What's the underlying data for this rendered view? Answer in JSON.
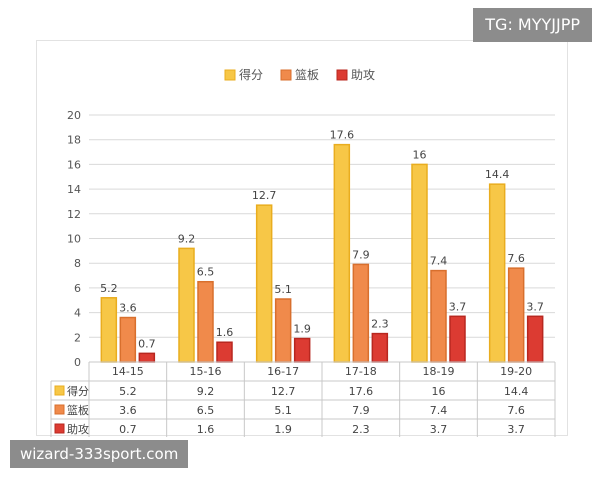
{
  "watermarks": {
    "top": "TG: MYYJJPP",
    "bottom": "wizard-333sport.com"
  },
  "colors": {
    "得分": "#f7c747",
    "篮板": "#f08a4b",
    "助攻": "#dc3b32"
  },
  "chart_data": {
    "type": "bar",
    "categories": [
      "14-15",
      "15-16",
      "16-17",
      "17-18",
      "18-19",
      "19-20"
    ],
    "series": [
      {
        "name": "得分",
        "values": [
          5.2,
          9.2,
          12.7,
          17.6,
          16,
          14.4
        ],
        "labels": [
          "5.2",
          "9.2",
          "12.7",
          "17.6",
          "16",
          "14.4"
        ]
      },
      {
        "name": "篮板",
        "values": [
          3.6,
          6.5,
          5.1,
          7.9,
          7.4,
          7.6
        ],
        "labels": [
          "3.6",
          "6.5",
          "5.1",
          "7.9",
          "7.4",
          "7.6"
        ]
      },
      {
        "name": "助攻",
        "values": [
          0.7,
          1.6,
          1.9,
          2.3,
          3.7,
          3.7
        ],
        "labels": [
          "0.7",
          "1.6",
          "1.9",
          "2.3",
          "3.7",
          "3.7"
        ]
      }
    ],
    "ylim": [
      0,
      20
    ],
    "yticks": [
      "0",
      "2",
      "4",
      "6",
      "8",
      "10",
      "12",
      "14",
      "16",
      "18",
      "20"
    ],
    "grid": true,
    "legend": "top-center",
    "data_table": true
  }
}
